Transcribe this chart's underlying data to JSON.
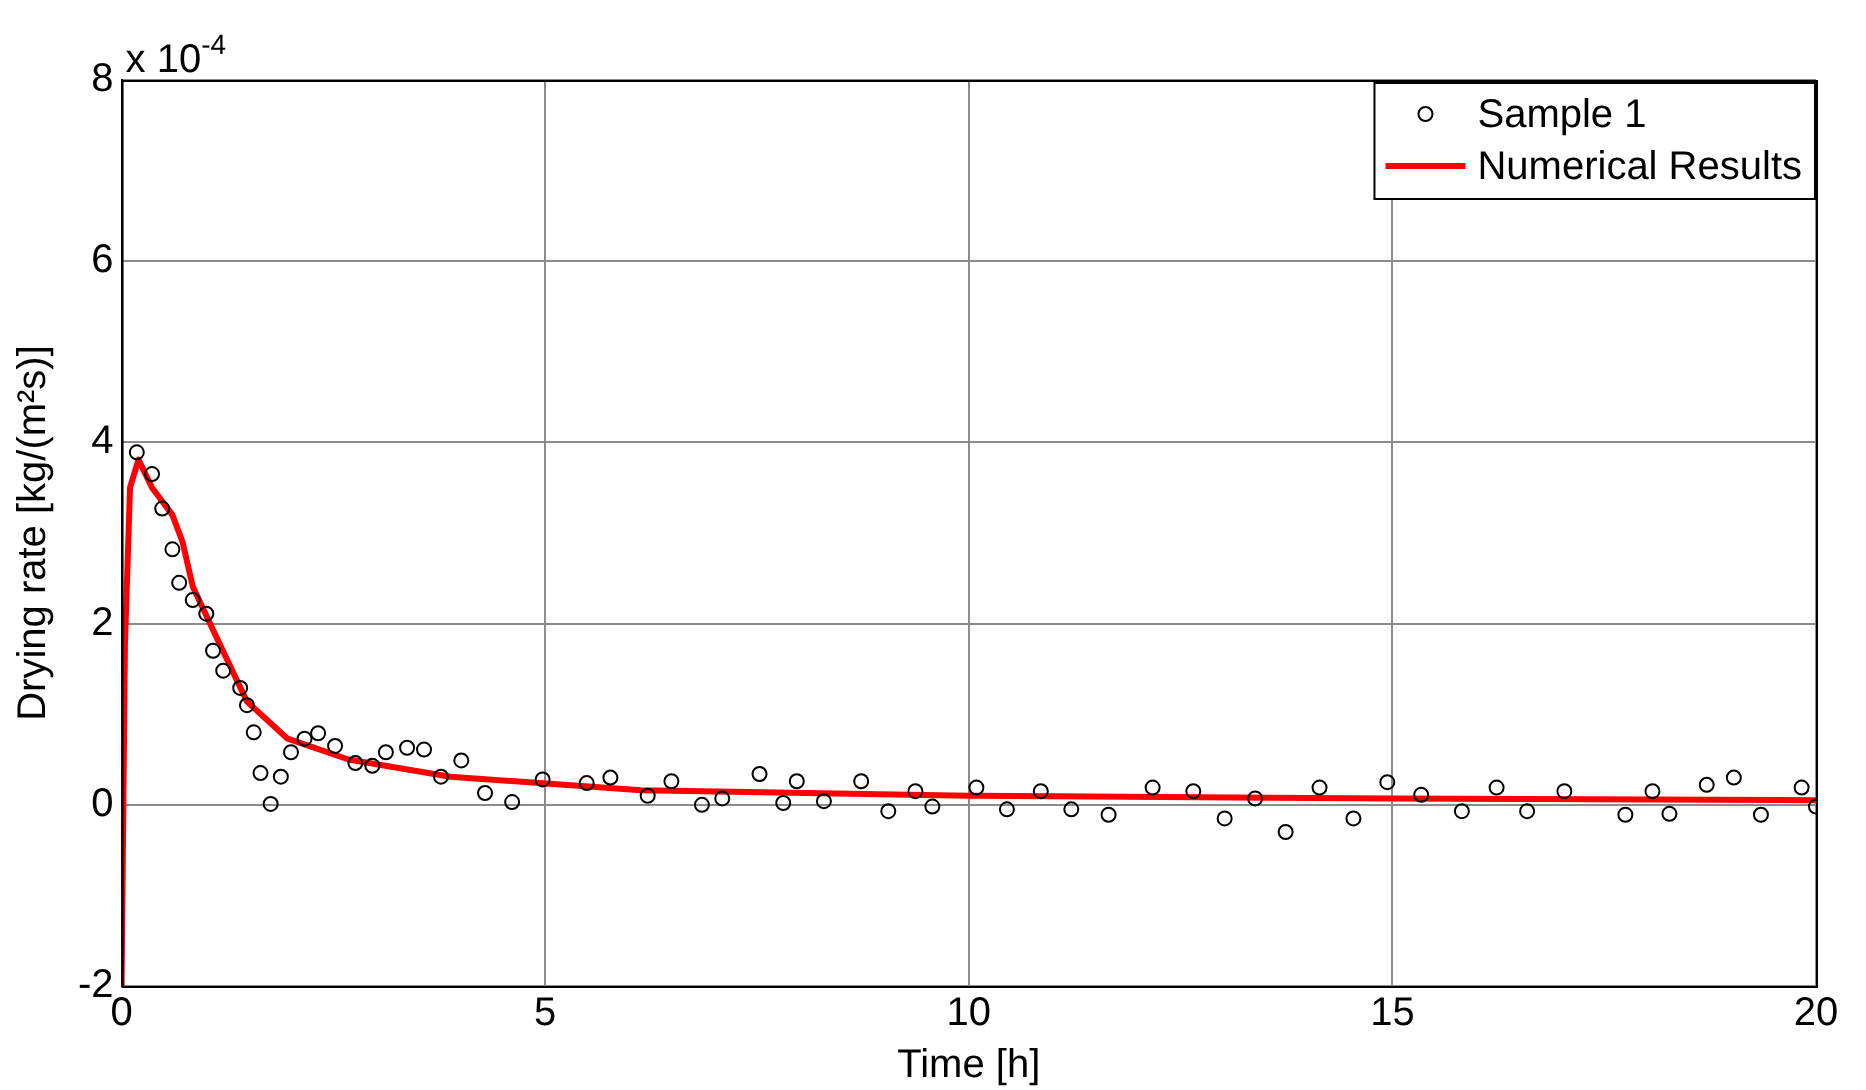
{
  "chart_data": {
    "type": "scatter",
    "xlabel": "Time [h]",
    "ylabel": "Drying rate [kg/(m²s)]",
    "annotations": [
      "x 10$^{-4}$"
    ],
    "xlim": [
      0,
      20
    ],
    "xticks": [
      0,
      5,
      10,
      15,
      20
    ],
    "ylim": [
      -2,
      8
    ],
    "yticks": [
      -2,
      0,
      2,
      4,
      6,
      8
    ],
    "grid": true,
    "legend": "top right",
    "series": [
      {
        "name": "Sample 1",
        "type": "scatter",
        "marker": "circle",
        "color": "#000000",
        "x": [
          0.18,
          0.36,
          0.48,
          0.6,
          0.68,
          0.84,
          1.0,
          1.08,
          1.2,
          1.4,
          1.48,
          1.56,
          1.64,
          1.76,
          1.88,
          2.0,
          2.16,
          2.32,
          2.52,
          2.76,
          2.96,
          3.12,
          3.37,
          3.57,
          3.77,
          4.01,
          4.29,
          4.61,
          4.97,
          5.49,
          5.77,
          6.21,
          6.49,
          6.85,
          7.09,
          7.53,
          7.81,
          7.97,
          8.29,
          8.73,
          9.05,
          9.37,
          9.57,
          10.09,
          10.45,
          10.85,
          11.21,
          11.65,
          12.17,
          12.65,
          13.02,
          13.38,
          13.74,
          14.14,
          14.54,
          14.94,
          15.34,
          15.82,
          16.23,
          16.59,
          17.03,
          17.75,
          18.07,
          18.27,
          18.71,
          19.03,
          19.35,
          19.83,
          20
        ],
        "values": [
          3.89,
          3.65,
          3.27,
          2.82,
          2.45,
          2.26,
          2.11,
          1.7,
          1.48,
          1.29,
          1.1,
          0.8,
          0.35,
          0.01,
          0.31,
          0.58,
          0.73,
          0.79,
          0.65,
          0.46,
          0.43,
          0.58,
          0.63,
          0.61,
          0.31,
          0.49,
          0.13,
          0.03,
          0.28,
          0.24,
          0.3,
          0.1,
          0.26,
          0.0,
          0.07,
          0.34,
          0.02,
          0.26,
          0.04,
          0.26,
          -0.07,
          0.15,
          -0.02,
          0.19,
          -0.05,
          0.15,
          -0.05,
          -0.11,
          0.19,
          0.15,
          -0.15,
          0.07,
          -0.3,
          0.19,
          -0.15,
          0.25,
          0.11,
          -0.07,
          0.19,
          -0.07,
          0.15,
          -0.11,
          0.15,
          -0.1,
          0.22,
          0.3,
          -0.11,
          0.19,
          -0.02
        ]
      },
      {
        "name": "Numerical Results",
        "type": "line",
        "marker": "none",
        "color": "#ff0000",
        "x": [
          0,
          0.04,
          0.1,
          0.2,
          0.36,
          0.6,
          0.72,
          0.84,
          1.08,
          1.48,
          1.96,
          2.68,
          3.88,
          6.13,
          10,
          15,
          20
        ],
        "values": [
          -2,
          1.78,
          3.5,
          3.81,
          3.5,
          3.2,
          2.9,
          2.41,
          1.93,
          1.14,
          0.73,
          0.5,
          0.31,
          0.16,
          0.1,
          0.07,
          0.05
        ]
      }
    ]
  }
}
